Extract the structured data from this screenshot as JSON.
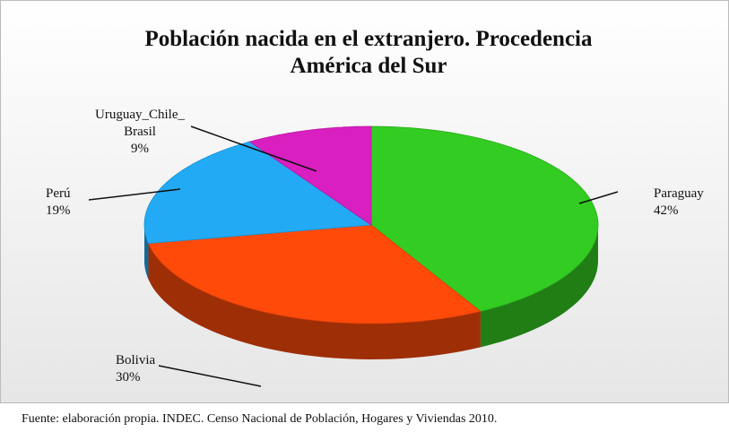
{
  "chart_data": {
    "type": "pie",
    "title": "Población nacida en el extranjero. Procedencia América del Sur",
    "categories": [
      "Paraguay",
      "Bolivia",
      "Perú",
      "Uruguay_Chile_ Brasil"
    ],
    "values": [
      42,
      30,
      19,
      9
    ],
    "value_labels": [
      "42%",
      "30%",
      "19%",
      "9%"
    ],
    "colors": [
      "#33cc22",
      "#ff4a0a",
      "#22aaf5",
      "#d91fbf"
    ],
    "source": "Fuente: elaboración propia. INDEC. Censo Nacional de Población, Hogares y Viviendas 2010."
  }
}
